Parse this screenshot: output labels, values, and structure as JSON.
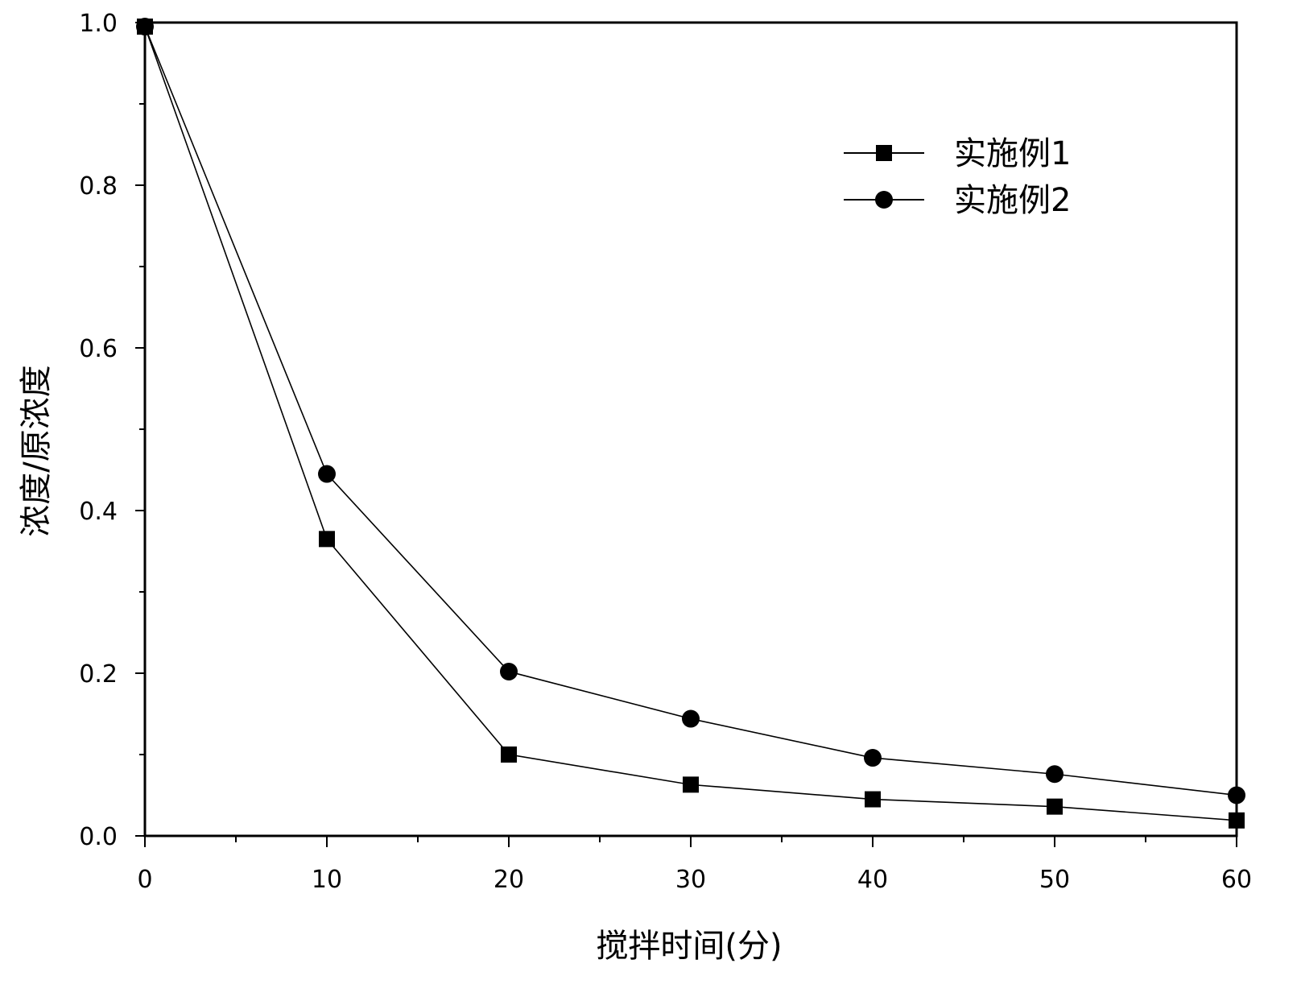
{
  "chart_data": {
    "type": "line",
    "title": "",
    "xlabel": "搅拌时间(分)",
    "ylabel": "浓度/原浓度",
    "xlim": [
      0,
      60
    ],
    "ylim": [
      0.0,
      1.0
    ],
    "x": [
      0,
      10,
      20,
      30,
      40,
      50,
      60
    ],
    "x_ticks": [
      0,
      10,
      20,
      30,
      40,
      50,
      60
    ],
    "x_tick_labels": [
      "0",
      "10",
      "20",
      "30",
      "40",
      "50",
      "60"
    ],
    "y_ticks": [
      0.0,
      0.2,
      0.4,
      0.6,
      0.8,
      1.0
    ],
    "y_tick_labels": [
      "0.0",
      "0.2",
      "0.4",
      "0.6",
      "0.8",
      "1.0"
    ],
    "grid": false,
    "legend_position": "top-right",
    "series": [
      {
        "name": "实施例1",
        "marker": "square",
        "color": "#000000",
        "values": [
          0.995,
          0.365,
          0.1,
          0.063,
          0.045,
          0.036,
          0.019
        ]
      },
      {
        "name": "实施例2",
        "marker": "circle",
        "color": "#000000",
        "values": [
          0.995,
          0.445,
          0.202,
          0.144,
          0.096,
          0.076,
          0.05
        ]
      }
    ]
  }
}
